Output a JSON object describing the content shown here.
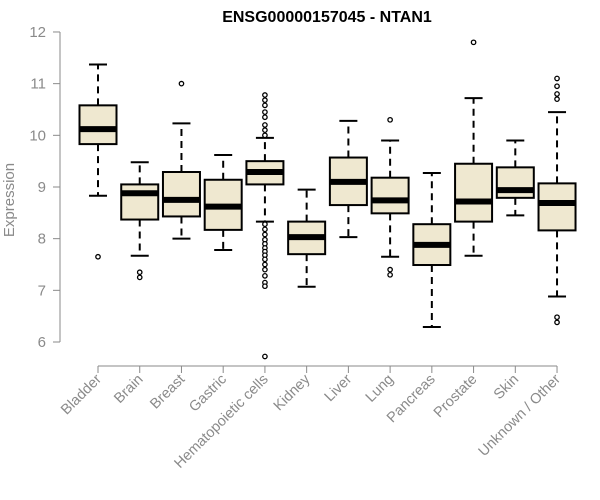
{
  "chart_data": {
    "type": "boxplot",
    "title": "ENSG00000157045 - NTAN1",
    "xlabel": "",
    "ylabel": "Expression",
    "ylim": [
      5.7,
      12
    ],
    "yticks": [
      6,
      7,
      8,
      9,
      10,
      11,
      12
    ],
    "ytick_labels": [
      "6",
      "7",
      "8",
      "9",
      "10",
      "11",
      "12"
    ],
    "box_fill": "#efe8d0",
    "box_stroke": "#000000",
    "categories": [
      "Bladder",
      "Brain",
      "Breast",
      "Gastric",
      "Hematopoietic cells",
      "Kidney",
      "Liver",
      "Lung",
      "Pancreas",
      "Prostate",
      "Skin",
      "Unknown / Other"
    ],
    "boxes": [
      {
        "min": 8.83,
        "q1": 9.83,
        "median": 10.12,
        "q3": 10.58,
        "max": 11.37,
        "outliers": [
          7.65
        ]
      },
      {
        "min": 7.67,
        "q1": 8.37,
        "median": 8.88,
        "q3": 9.05,
        "max": 9.48,
        "outliers": [
          7.35,
          7.25
        ]
      },
      {
        "min": 8.0,
        "q1": 8.43,
        "median": 8.75,
        "q3": 9.29,
        "max": 10.23,
        "outliers": [
          11.0
        ]
      },
      {
        "min": 7.78,
        "q1": 8.17,
        "median": 8.62,
        "q3": 9.14,
        "max": 9.62,
        "outliers": []
      },
      {
        "min": 8.33,
        "q1": 9.05,
        "median": 9.29,
        "q3": 9.5,
        "max": 9.95,
        "outliers": [
          10.78,
          10.68,
          10.58,
          10.45,
          10.35,
          10.2,
          10.1,
          10.0,
          8.28,
          8.18,
          8.08,
          7.98,
          7.9,
          7.82,
          7.75,
          7.68,
          7.6,
          7.5,
          7.4,
          7.28,
          7.15,
          7.08,
          5.72
        ]
      },
      {
        "min": 7.07,
        "q1": 7.7,
        "median": 8.03,
        "q3": 8.33,
        "max": 8.95,
        "outliers": []
      },
      {
        "min": 8.03,
        "q1": 8.65,
        "median": 9.1,
        "q3": 9.57,
        "max": 10.28,
        "outliers": []
      },
      {
        "min": 7.65,
        "q1": 8.49,
        "median": 8.74,
        "q3": 9.18,
        "max": 9.9,
        "outliers": [
          10.3,
          7.4,
          7.3
        ]
      },
      {
        "min": 6.29,
        "q1": 7.49,
        "median": 7.88,
        "q3": 8.28,
        "max": 9.27,
        "outliers": []
      },
      {
        "min": 7.67,
        "q1": 8.33,
        "median": 8.72,
        "q3": 9.45,
        "max": 10.72,
        "outliers": [
          11.8
        ]
      },
      {
        "min": 8.45,
        "q1": 8.79,
        "median": 8.94,
        "q3": 9.38,
        "max": 9.9,
        "outliers": []
      },
      {
        "min": 6.88,
        "q1": 8.16,
        "median": 8.69,
        "q3": 9.07,
        "max": 10.45,
        "outliers": [
          11.1,
          10.95,
          10.8,
          10.7,
          6.48,
          6.38
        ]
      }
    ]
  }
}
